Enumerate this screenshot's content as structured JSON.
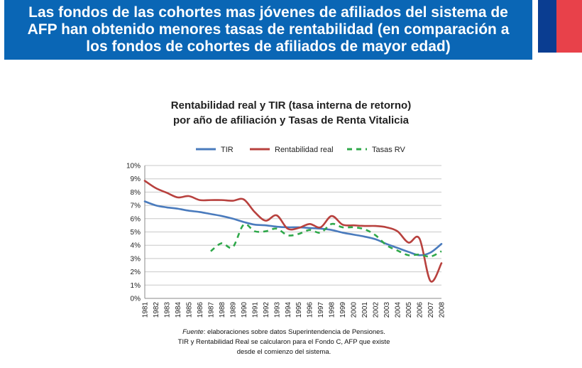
{
  "header": {
    "title_line1": "Las fondos de las cohortes mas jóvenes de afiliados del sistema de",
    "title_line2": "AFP han obtenido  menores tasas de rentabilidad (en comparación a",
    "title_line3": "los fondos de cohortes de afiliados de mayor edad)"
  },
  "colors": {
    "header_bg": "#0a66b5",
    "flag_blue": "#0a3d91",
    "flag_red": "#e8414a"
  },
  "chart_data": {
    "type": "line",
    "title_line1": "Rentabilidad real y TIR (tasa interna de retorno)",
    "title_line2": "por año de afiliación y Tasas de Renta Vitalicia",
    "legend_position": "top",
    "grid": true,
    "ylim": [
      0,
      10
    ],
    "y_ticks": [
      "0%",
      "1%",
      "2%",
      "3%",
      "4%",
      "5%",
      "6%",
      "7%",
      "8%",
      "9%",
      "10%"
    ],
    "x": [
      "1981",
      "1982",
      "1983",
      "1984",
      "1985",
      "1986",
      "1987",
      "1988",
      "1989",
      "1990",
      "1991",
      "1992",
      "1993",
      "1994",
      "1995",
      "1996",
      "1997",
      "1998",
      "1999",
      "2000",
      "2001",
      "2002",
      "2003",
      "2004",
      "2005",
      "2006",
      "2007",
      "2008"
    ],
    "series": [
      {
        "name": "TIR",
        "color": "#4a7bbd",
        "dashed": false,
        "values": [
          7.3,
          7.0,
          6.85,
          6.75,
          6.6,
          6.5,
          6.35,
          6.2,
          6.0,
          5.75,
          5.55,
          5.5,
          5.4,
          5.35,
          5.35,
          5.3,
          5.25,
          5.15,
          4.95,
          4.8,
          4.65,
          4.45,
          4.1,
          3.8,
          3.5,
          3.25,
          3.45,
          4.1
        ]
      },
      {
        "name": "Rentabilidad real",
        "color": "#b8413e",
        "dashed": false,
        "values": [
          8.85,
          8.3,
          7.95,
          7.6,
          7.7,
          7.4,
          7.4,
          7.4,
          7.35,
          7.45,
          6.5,
          5.85,
          6.25,
          5.25,
          5.3,
          5.6,
          5.35,
          6.2,
          5.55,
          5.5,
          5.45,
          5.45,
          5.35,
          5.05,
          4.2,
          4.5,
          1.3,
          2.65
        ]
      },
      {
        "name": "Tasas RV",
        "color": "#2fa84a",
        "dashed": true,
        "values": [
          null,
          null,
          null,
          null,
          null,
          null,
          3.55,
          4.15,
          3.85,
          5.55,
          5.05,
          5.05,
          5.25,
          4.75,
          4.85,
          5.15,
          4.95,
          5.6,
          5.35,
          5.35,
          5.2,
          4.75,
          4.0,
          3.6,
          3.25,
          3.3,
          3.15,
          3.55
        ]
      }
    ]
  },
  "source": {
    "label": "Fuente",
    "text": ": elaboraciones sobre datos Superintendencia de Pensiones.",
    "line2": "TIR y Rentabilidad Real  se calcularon para el Fondo C, AFP que existe",
    "line3": "desde el comienzo del sistema."
  }
}
